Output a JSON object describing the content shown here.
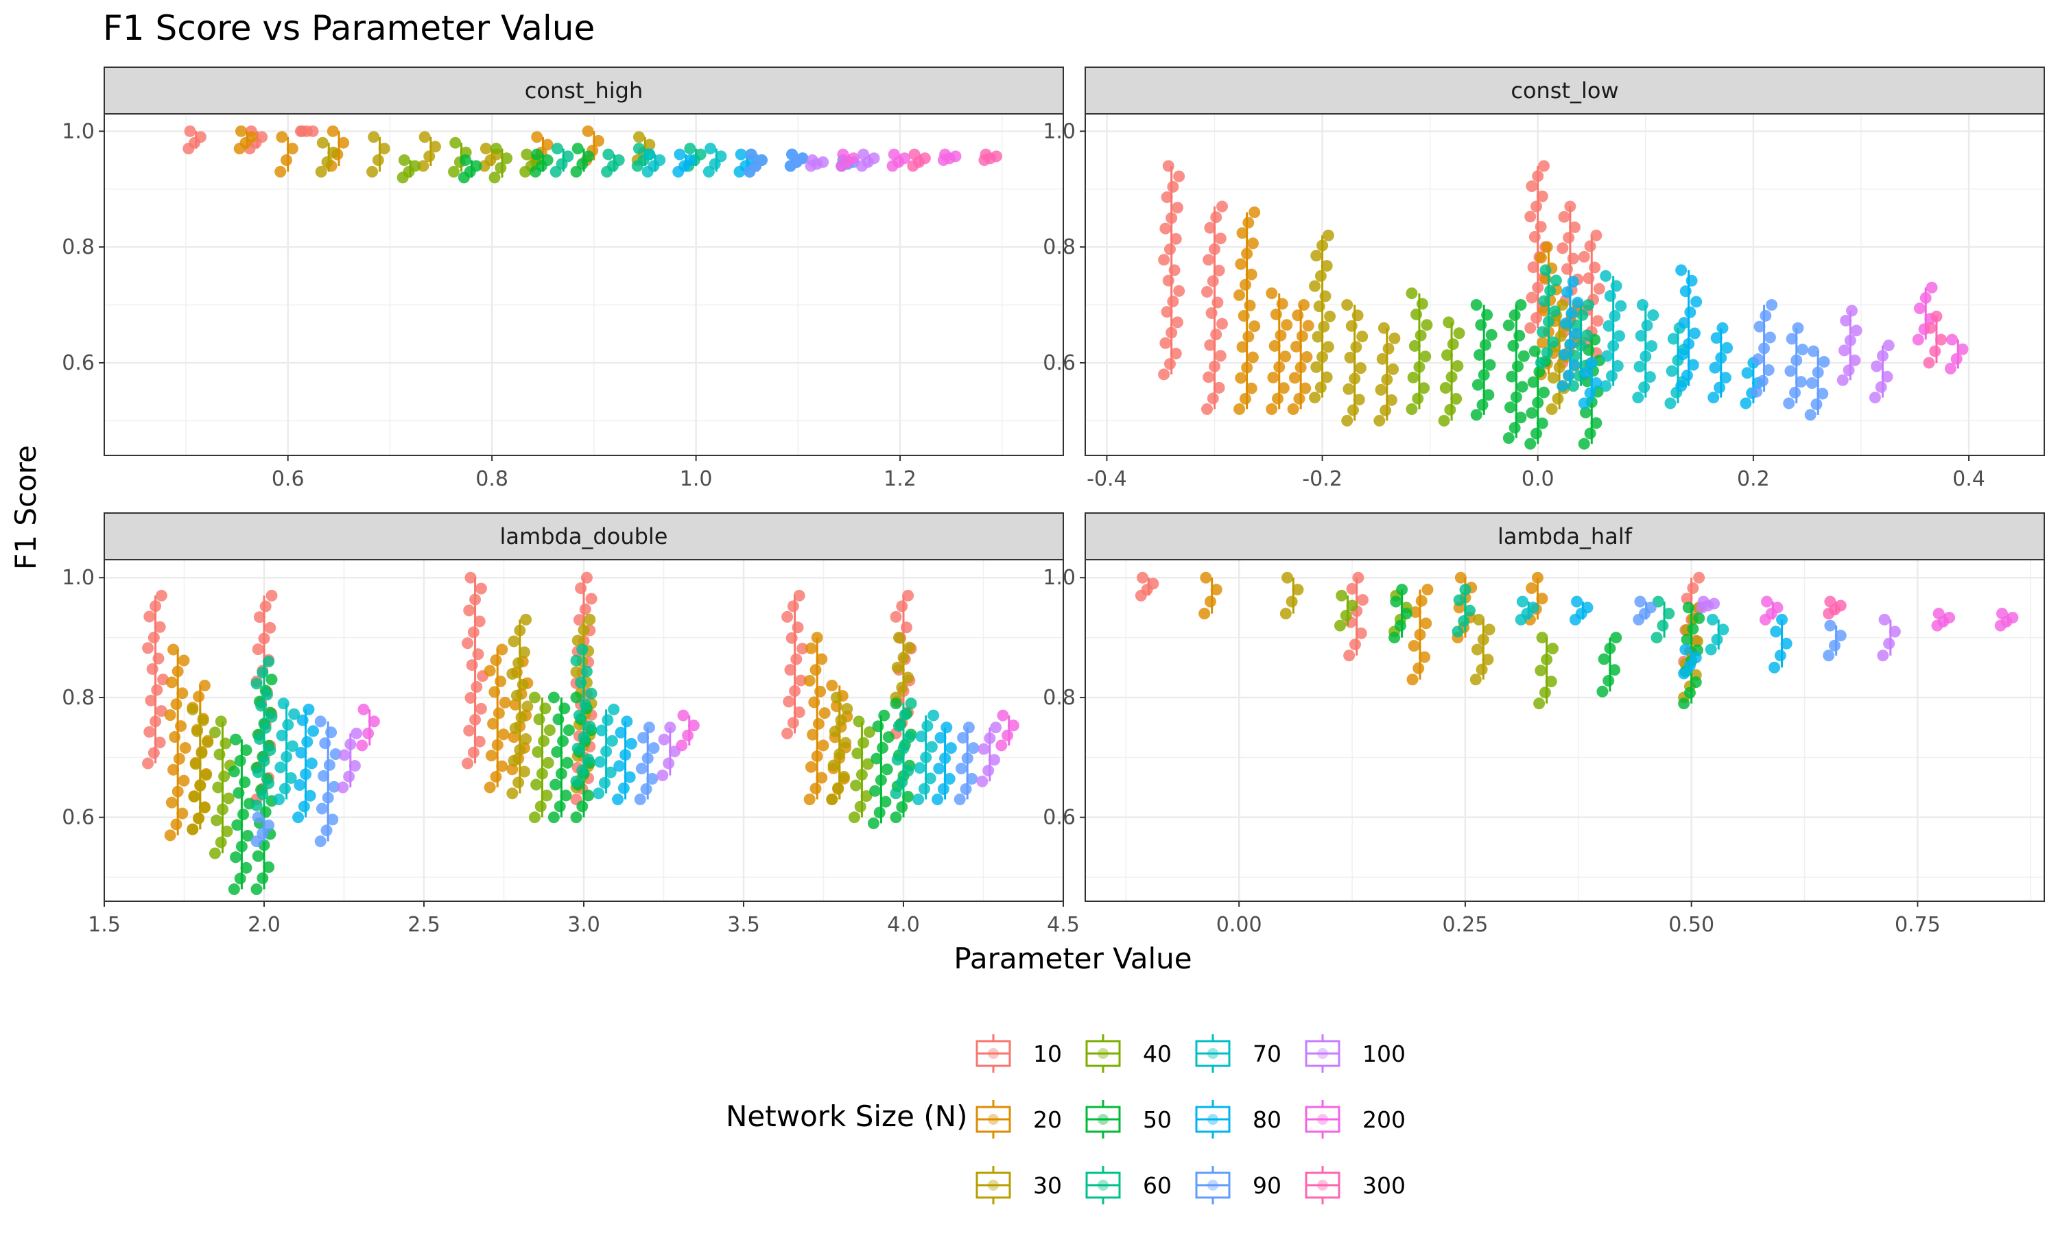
{
  "chart_data": {
    "type": "scatter",
    "title": "F1 Score vs Parameter Value",
    "xlabel": "Parameter Value",
    "ylabel": "F1 Score",
    "grid": true,
    "legend": {
      "title": "Network Size (N)",
      "placement": "bottom",
      "entries": [
        {
          "label": "10",
          "color": "#F8766D"
        },
        {
          "label": "20",
          "color": "#DE8C00"
        },
        {
          "label": "30",
          "color": "#B79F00"
        },
        {
          "label": "40",
          "color": "#7CAE00"
        },
        {
          "label": "50",
          "color": "#00BA38"
        },
        {
          "label": "60",
          "color": "#00C08B"
        },
        {
          "label": "70",
          "color": "#00BFC4"
        },
        {
          "label": "80",
          "color": "#00B4F0"
        },
        {
          "label": "90",
          "color": "#619CFF"
        },
        {
          "label": "100",
          "color": "#C77CFF"
        },
        {
          "label": "200",
          "color": "#F564E3"
        },
        {
          "label": "300",
          "color": "#FF64B0"
        }
      ]
    },
    "panels": [
      {
        "name": "const_high",
        "xlim": [
          0.42,
          1.36
        ],
        "ylim": [
          0.44,
          1.03
        ],
        "x_ticks": [
          0.6,
          0.8,
          1.0,
          1.2
        ],
        "x_tick_labels": [
          "0.6",
          "0.8",
          "1.0",
          "1.2"
        ],
        "y_ticks": [
          0.6,
          0.8,
          1.0
        ],
        "y_tick_labels": [
          "0.6",
          "0.8",
          "1.0"
        ],
        "series": [
          {
            "n": "10",
            "x": [
              0.51,
              0.57,
              0.62
            ],
            "min": [
              0.97,
              0.97,
              1.0
            ],
            "max": [
              1.0,
              1.0,
              1.0
            ]
          },
          {
            "n": "20",
            "x": [
              0.56,
              0.6,
              0.65,
              0.85,
              0.9
            ],
            "min": [
              0.97,
              0.93,
              0.94,
              0.95,
              0.95
            ],
            "max": [
              1.0,
              0.99,
              1.0,
              0.99,
              1.0
            ]
          },
          {
            "n": "30",
            "x": [
              0.64,
              0.69,
              0.74,
              0.8,
              0.95
            ],
            "min": [
              0.93,
              0.93,
              0.94,
              0.94,
              0.95
            ],
            "max": [
              0.98,
              0.99,
              0.99,
              0.97,
              0.99
            ]
          },
          {
            "n": "40",
            "x": [
              0.72,
              0.77,
              0.81,
              0.84
            ],
            "min": [
              0.92,
              0.93,
              0.92,
              0.93
            ],
            "max": [
              0.95,
              0.98,
              0.97,
              0.96
            ]
          },
          {
            "n": "50",
            "x": [
              0.78,
              0.85,
              0.89
            ],
            "min": [
              0.92,
              0.93,
              0.93
            ],
            "max": [
              0.95,
              0.96,
              0.97
            ]
          },
          {
            "n": "60",
            "x": [
              0.87,
              0.92,
              0.95,
              1.0
            ],
            "min": [
              0.93,
              0.93,
              0.94,
              0.94
            ],
            "max": [
              0.97,
              0.96,
              0.97,
              0.97
            ]
          },
          {
            "n": "70",
            "x": [
              0.96,
              1.02,
              1.06
            ],
            "min": [
              0.93,
              0.93,
              0.93
            ],
            "max": [
              0.96,
              0.97,
              0.96
            ]
          },
          {
            "n": "80",
            "x": [
              0.99,
              1.05,
              1.1
            ],
            "min": [
              0.93,
              0.93,
              0.94
            ],
            "max": [
              0.96,
              0.96,
              0.96
            ]
          },
          {
            "n": "90",
            "x": [
              1.06,
              1.1,
              1.15
            ],
            "min": [
              0.93,
              0.94,
              0.94
            ],
            "max": [
              0.96,
              0.96,
              0.95
            ]
          },
          {
            "n": "100",
            "x": [
              1.12,
              1.17
            ],
            "min": [
              0.94,
              0.94
            ],
            "max": [
              0.95,
              0.96
            ]
          },
          {
            "n": "200",
            "x": [
              1.15,
              1.2,
              1.25
            ],
            "min": [
              0.94,
              0.94,
              0.95
            ],
            "max": [
              0.96,
              0.96,
              0.96
            ]
          },
          {
            "n": "300",
            "x": [
              1.22,
              1.29
            ],
            "min": [
              0.94,
              0.95
            ],
            "max": [
              0.96,
              0.96
            ]
          }
        ]
      },
      {
        "name": "const_low",
        "xlim": [
          -0.42,
          0.47
        ],
        "ylim": [
          0.44,
          1.03
        ],
        "x_ticks": [
          -0.4,
          -0.2,
          0.0,
          0.2,
          0.4
        ],
        "x_tick_labels": [
          "-0.4",
          "-0.2",
          "0.0",
          "0.2",
          "0.4"
        ],
        "y_ticks": [
          0.6,
          0.8,
          1.0
        ],
        "y_tick_labels": [
          "0.6",
          "0.8",
          "1.0"
        ],
        "series": [
          {
            "n": "10",
            "x": [
              -0.34,
              -0.3,
              0.0,
              0.03,
              0.05
            ],
            "min": [
              0.58,
              0.52,
              0.66,
              0.6,
              0.58
            ],
            "max": [
              0.94,
              0.87,
              0.94,
              0.87,
              0.82
            ]
          },
          {
            "n": "20",
            "x": [
              -0.27,
              -0.24,
              -0.22,
              0.01,
              0.03
            ],
            "min": [
              0.52,
              0.52,
              0.52,
              0.58,
              0.56
            ],
            "max": [
              0.86,
              0.72,
              0.7,
              0.8,
              0.7
            ]
          },
          {
            "n": "30",
            "x": [
              -0.2,
              -0.17,
              -0.14,
              0.02
            ],
            "min": [
              0.54,
              0.5,
              0.5,
              0.52
            ],
            "max": [
              0.82,
              0.7,
              0.66,
              0.7
            ]
          },
          {
            "n": "40",
            "x": [
              -0.11,
              -0.08
            ],
            "min": [
              0.52,
              0.5
            ],
            "max": [
              0.72,
              0.67
            ]
          },
          {
            "n": "50",
            "x": [
              -0.05,
              -0.02,
              0.0,
              0.05
            ],
            "min": [
              0.51,
              0.47,
              0.46,
              0.46
            ],
            "max": [
              0.7,
              0.7,
              0.62,
              0.64
            ]
          },
          {
            "n": "60",
            "x": [
              0.01,
              0.04
            ],
            "min": [
              0.6,
              0.56
            ],
            "max": [
              0.76,
              0.7
            ]
          },
          {
            "n": "70",
            "x": [
              0.07,
              0.1,
              0.13
            ],
            "min": [
              0.56,
              0.54,
              0.53
            ],
            "max": [
              0.75,
              0.7,
              0.66
            ]
          },
          {
            "n": "80",
            "x": [
              0.14,
              0.17,
              0.2,
              0.03,
              0.05
            ],
            "min": [
              0.56,
              0.54,
              0.53,
              0.56,
              0.53
            ],
            "max": [
              0.76,
              0.66,
              0.6,
              0.74,
              0.6
            ]
          },
          {
            "n": "90",
            "x": [
              0.21,
              0.24,
              0.26
            ],
            "min": [
              0.55,
              0.53,
              0.51
            ],
            "max": [
              0.7,
              0.66,
              0.62
            ]
          },
          {
            "n": "100",
            "x": [
              0.29,
              0.32
            ],
            "min": [
              0.57,
              0.54
            ],
            "max": [
              0.69,
              0.63
            ]
          },
          {
            "n": "200",
            "x": [
              0.36,
              0.39
            ],
            "min": [
              0.64,
              0.59
            ],
            "max": [
              0.73,
              0.64
            ]
          },
          {
            "n": "300",
            "x": [
              0.37
            ],
            "min": [
              0.6
            ],
            "max": [
              0.68
            ]
          }
        ]
      },
      {
        "name": "lambda_double",
        "xlim": [
          1.5,
          4.5
        ],
        "ylim": [
          0.46,
          1.03
        ],
        "x_ticks": [
          1.5,
          2.0,
          2.5,
          3.0,
          3.5,
          4.0,
          4.5
        ],
        "x_tick_labels": [
          "1.5",
          "2.0",
          "2.5",
          "3.0",
          "3.5",
          "4.0",
          "4.5"
        ],
        "y_ticks": [
          0.6,
          0.8,
          1.0
        ],
        "y_tick_labels": [
          "0.6",
          "0.8",
          "1.0"
        ],
        "series": [
          {
            "n": "10",
            "x": [
              1.66,
              2.0,
              2.66,
              3.0,
              3.66,
              4.0
            ],
            "min": [
              0.69,
              0.63,
              0.69,
              0.63,
              0.74,
              0.74
            ],
            "max": [
              0.97,
              0.97,
              1.0,
              1.0,
              0.97,
              0.97
            ]
          },
          {
            "n": "20",
            "x": [
              1.73,
              1.8,
              2.73,
              2.8,
              3.73,
              3.8
            ],
            "min": [
              0.57,
              0.58,
              0.65,
              0.68,
              0.63,
              0.63
            ],
            "max": [
              0.88,
              0.82,
              0.88,
              0.86,
              0.9,
              0.82
            ]
          },
          {
            "n": "30",
            "x": [
              1.8,
              2.8,
              3.0,
              3.8,
              4.0
            ],
            "min": [
              0.58,
              0.64,
              0.65,
              0.63,
              0.8
            ],
            "max": [
              0.78,
              0.93,
              0.93,
              0.8,
              0.9
            ]
          },
          {
            "n": "40",
            "x": [
              1.87,
              2.87,
              3.87
            ],
            "min": [
              0.54,
              0.6,
              0.6
            ],
            "max": [
              0.76,
              0.8,
              0.76
            ]
          },
          {
            "n": "50",
            "x": [
              1.93,
              2.0,
              2.93,
              3.0,
              3.93,
              4.0
            ],
            "min": [
              0.48,
              0.48,
              0.6,
              0.6,
              0.59,
              0.6
            ],
            "max": [
              0.73,
              0.83,
              0.8,
              0.8,
              0.77,
              0.79
            ]
          },
          {
            "n": "60",
            "x": [
              2.0,
              3.0,
              4.0
            ],
            "min": [
              0.62,
              0.66,
              0.64
            ],
            "max": [
              0.86,
              0.88,
              0.79
            ]
          },
          {
            "n": "70",
            "x": [
              2.07,
              3.07,
              4.07
            ],
            "min": [
              0.63,
              0.64,
              0.63
            ],
            "max": [
              0.79,
              0.78,
              0.77
            ]
          },
          {
            "n": "80",
            "x": [
              2.13,
              3.13,
              4.13
            ],
            "min": [
              0.6,
              0.63,
              0.63
            ],
            "max": [
              0.78,
              0.76,
              0.75
            ]
          },
          {
            "n": "90",
            "x": [
              2.0,
              2.2,
              3.2,
              4.2
            ],
            "min": [
              0.56,
              0.56,
              0.63,
              0.63
            ],
            "max": [
              0.6,
              0.76,
              0.75,
              0.75
            ]
          },
          {
            "n": "100",
            "x": [
              2.27,
              3.27,
              4.27
            ],
            "min": [
              0.65,
              0.67,
              0.66
            ],
            "max": [
              0.74,
              0.75,
              0.75
            ]
          },
          {
            "n": "200",
            "x": [
              2.33,
              3.33,
              4.33
            ],
            "min": [
              0.72,
              0.72,
              0.72
            ],
            "max": [
              0.78,
              0.77,
              0.77
            ]
          }
        ]
      },
      {
        "name": "lambda_half",
        "xlim": [
          -0.17,
          0.89
        ],
        "ylim": [
          0.46,
          1.03
        ],
        "x_ticks": [
          0.0,
          0.25,
          0.5,
          0.75
        ],
        "x_tick_labels": [
          "0.00",
          "0.25",
          "0.50",
          "0.75"
        ],
        "y_ticks": [
          0.6,
          0.8,
          1.0
        ],
        "y_tick_labels": [
          "0.6",
          "0.8",
          "1.0"
        ],
        "series": [
          {
            "n": "10",
            "x": [
              -0.1,
              0.13,
              0.5
            ],
            "min": [
              0.97,
              0.87,
              0.86
            ],
            "max": [
              1.0,
              1.0,
              1.0
            ]
          },
          {
            "n": "20",
            "x": [
              -0.03,
              0.2,
              0.25,
              0.33
            ],
            "min": [
              0.94,
              0.83,
              0.9,
              0.93
            ],
            "max": [
              1.0,
              0.98,
              1.0,
              1.0
            ]
          },
          {
            "n": "30",
            "x": [
              0.06,
              0.27,
              0.5
            ],
            "min": [
              0.94,
              0.83,
              0.8
            ],
            "max": [
              1.0,
              0.93,
              0.95
            ]
          },
          {
            "n": "40",
            "x": [
              0.12,
              0.18,
              0.34
            ],
            "min": [
              0.92,
              0.91,
              0.79
            ],
            "max": [
              0.97,
              0.97,
              0.9
            ]
          },
          {
            "n": "50",
            "x": [
              0.18,
              0.41,
              0.5
            ],
            "min": [
              0.9,
              0.81,
              0.79
            ],
            "max": [
              0.98,
              0.9,
              0.95
            ]
          },
          {
            "n": "60",
            "x": [
              0.25,
              0.47
            ],
            "min": [
              0.91,
              0.9
            ],
            "max": [
              0.98,
              0.96
            ]
          },
          {
            "n": "70",
            "x": [
              0.32,
              0.53
            ],
            "min": [
              0.93,
              0.88
            ],
            "max": [
              0.96,
              0.93
            ]
          },
          {
            "n": "80",
            "x": [
              0.38,
              0.6,
              0.5
            ],
            "min": [
              0.93,
              0.85,
              0.84
            ],
            "max": [
              0.96,
              0.93,
              0.88
            ]
          },
          {
            "n": "90",
            "x": [
              0.45,
              0.66
            ],
            "min": [
              0.93,
              0.87
            ],
            "max": [
              0.96,
              0.92
            ]
          },
          {
            "n": "100",
            "x": [
              0.52,
              0.72
            ],
            "min": [
              0.95,
              0.87
            ],
            "max": [
              0.96,
              0.93
            ]
          },
          {
            "n": "200",
            "x": [
              0.59,
              0.78,
              0.85
            ],
            "min": [
              0.93,
              0.92,
              0.92
            ],
            "max": [
              0.96,
              0.94,
              0.94
            ]
          },
          {
            "n": "300",
            "x": [
              0.66
            ],
            "min": [
              0.94
            ],
            "max": [
              0.96
            ]
          }
        ]
      }
    ]
  }
}
